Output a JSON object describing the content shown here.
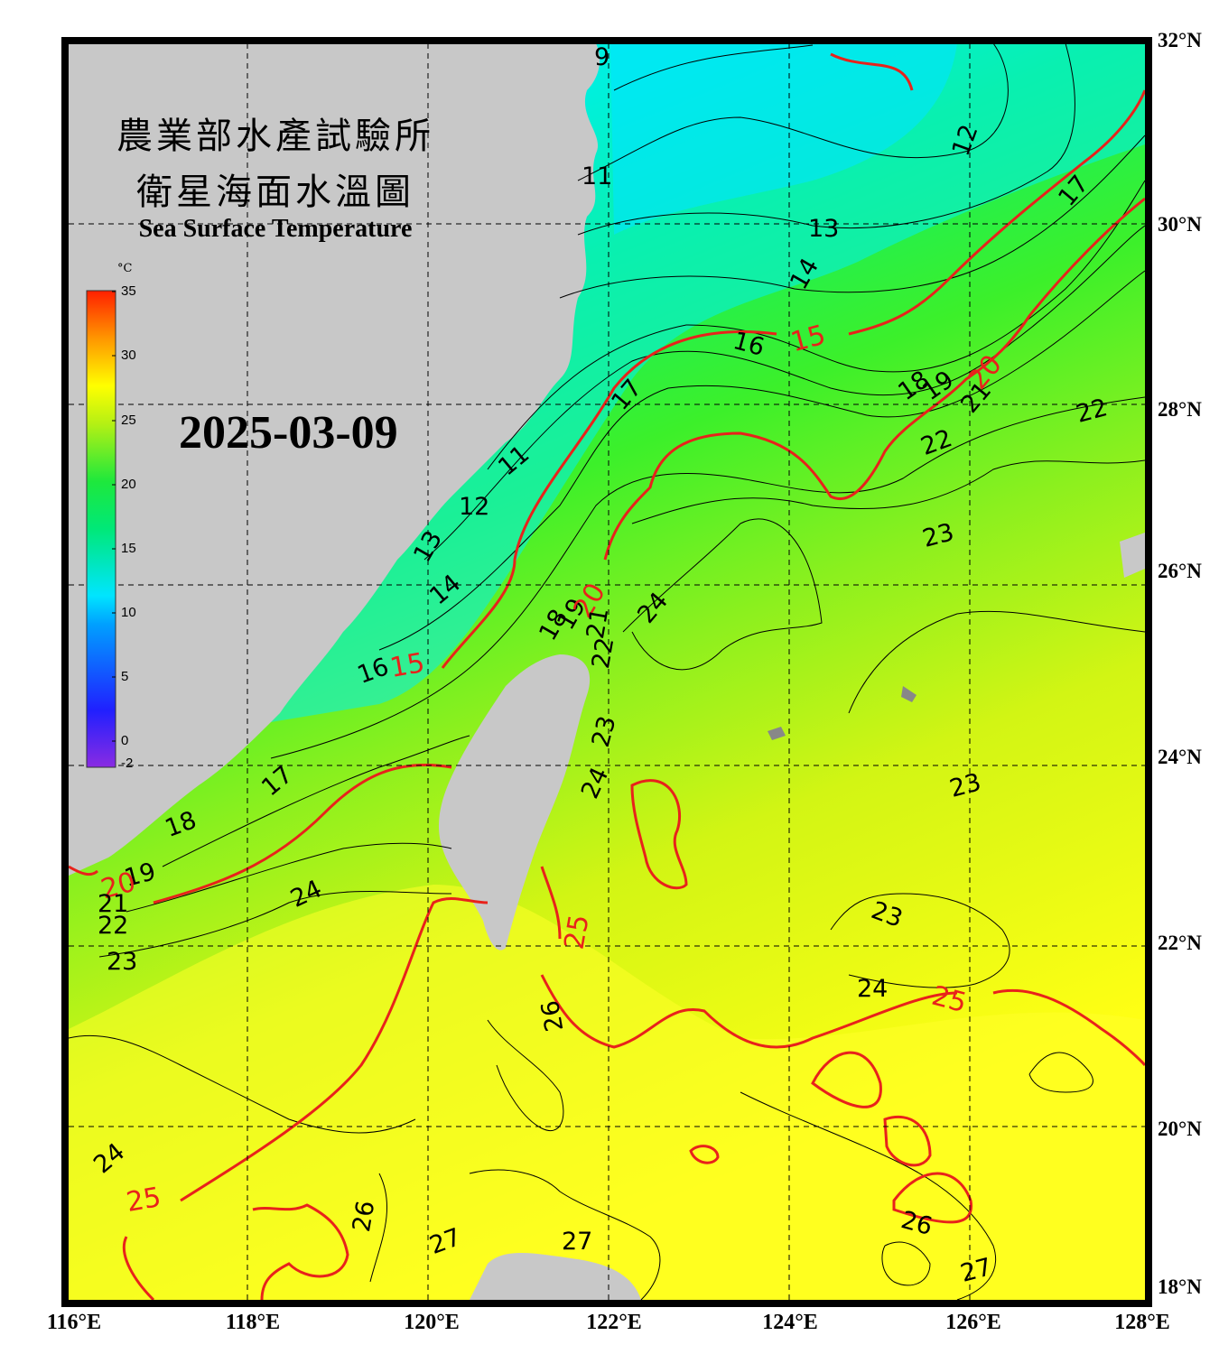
{
  "header": {
    "title_zh_line1": "農業部水產試驗所",
    "title_zh_line2": "衛星海面水溫圖",
    "title_en": "Sea Surface Temperature",
    "date": "2025-03-09"
  },
  "colorbar": {
    "unit": "°C",
    "min": -2,
    "max": 35,
    "ticks": [
      "35",
      "30",
      "25",
      "20",
      "15",
      "10",
      "5",
      "0",
      "-2"
    ]
  },
  "axes": {
    "lat_labels": [
      "32°N",
      "30°N",
      "28°N",
      "26°N",
      "24°N",
      "22°N",
      "20°N",
      "18°N"
    ],
    "lon_labels": [
      "116°E",
      "118°E",
      "120°E",
      "122°E",
      "124°E",
      "126°E",
      "128°E"
    ]
  },
  "colors": {
    "frame": "#000000",
    "land": "#c8c8c8",
    "cold": "#00e5ff",
    "mid": "#1ef05a",
    "warm": "#f0ff14",
    "isotherm_major": "#e8221b"
  },
  "isotherm_labels": [
    {
      "text": "9",
      "red": false
    },
    {
      "text": "11",
      "red": false
    },
    {
      "text": "12",
      "red": false
    },
    {
      "text": "13",
      "red": false
    },
    {
      "text": "14",
      "red": false
    },
    {
      "text": "16",
      "red": false
    },
    {
      "text": "15",
      "red": true
    },
    {
      "text": "17",
      "red": false
    },
    {
      "text": "18",
      "red": false
    },
    {
      "text": "19",
      "red": false
    },
    {
      "text": "20",
      "red": true
    },
    {
      "text": "21",
      "red": false
    },
    {
      "text": "22",
      "red": false
    },
    {
      "text": "22",
      "red": false
    },
    {
      "text": "22",
      "red": false
    },
    {
      "text": "23",
      "red": false
    },
    {
      "text": "24",
      "red": false
    },
    {
      "text": "11",
      "red": false
    },
    {
      "text": "12",
      "red": false
    },
    {
      "text": "13",
      "red": false
    },
    {
      "text": "14",
      "red": false
    },
    {
      "text": "15",
      "red": true
    },
    {
      "text": "16",
      "red": false
    },
    {
      "text": "18",
      "red": false
    },
    {
      "text": "19",
      "red": false
    },
    {
      "text": "20",
      "red": true
    },
    {
      "text": "21",
      "red": false
    },
    {
      "text": "22",
      "red": false
    },
    {
      "text": "23",
      "red": false
    },
    {
      "text": "24",
      "red": false
    },
    {
      "text": "17",
      "red": false
    },
    {
      "text": "18",
      "red": false
    },
    {
      "text": "19",
      "red": false
    },
    {
      "text": "20",
      "red": true
    },
    {
      "text": "21",
      "red": false
    },
    {
      "text": "22",
      "red": false
    },
    {
      "text": "23",
      "red": false
    },
    {
      "text": "24",
      "red": false
    },
    {
      "text": "23",
      "red": false
    },
    {
      "text": "23",
      "red": false
    },
    {
      "text": "24",
      "red": false
    },
    {
      "text": "25",
      "red": true
    },
    {
      "text": "25",
      "red": true
    },
    {
      "text": "26",
      "red": false
    },
    {
      "text": "24",
      "red": false
    },
    {
      "text": "25",
      "red": true
    },
    {
      "text": "26",
      "red": false
    },
    {
      "text": "27",
      "red": false
    },
    {
      "text": "27",
      "red": false
    },
    {
      "text": "26",
      "red": false
    },
    {
      "text": "27",
      "red": false
    },
    {
      "text": "17",
      "red": false
    }
  ]
}
